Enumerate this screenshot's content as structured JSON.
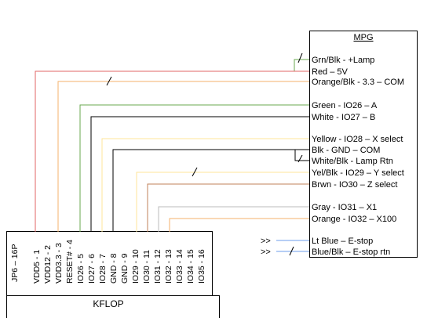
{
  "mpg": {
    "title": "MPG",
    "labels": [
      {
        "id": "grn-blk",
        "text": "Grn/Blk - +Lamp"
      },
      {
        "id": "red",
        "text": "Red – 5V"
      },
      {
        "id": "orange-blk",
        "text": "Orange/Blk - 3.3 – COM"
      },
      {
        "id": "green",
        "text": "Green - IO26 – A"
      },
      {
        "id": "white",
        "text": "White - IO27 – B"
      },
      {
        "id": "yellow",
        "text": "Yellow - IO28 – X select"
      },
      {
        "id": "blk",
        "text": "Blk - GND – COM"
      },
      {
        "id": "white-blk",
        "text": "White/Blk - Lamp Rtn"
      },
      {
        "id": "yel-blk",
        "text": "Yel/Blk - IO29 – Y select"
      },
      {
        "id": "brwn",
        "text": "Brwn - IO30 – Z select"
      },
      {
        "id": "gray",
        "text": "Gray - IO31 – X1"
      },
      {
        "id": "orange",
        "text": "Orange - IO32 – X100"
      },
      {
        "id": "lt-blue",
        "text": "Lt Blue – E-stop"
      },
      {
        "id": "blue-blk",
        "text": "Blue/Blk – E-stop rtn"
      }
    ]
  },
  "kflop": {
    "title": "KFLOP",
    "connector": "JP6 – 16P",
    "pins": [
      "VDD5 - 1",
      "VDD12 - 2",
      "VDD3.3 - 3",
      "RESET# - 4",
      "IO26 - 5",
      "IO27 - 6",
      "IO28 - 7",
      "GND - 8",
      "GND - 9",
      "IO29 - 10",
      "IO30 - 11",
      "IO31 - 12",
      "IO32 - 13",
      "IO33 - 14",
      "IO34 - 15",
      "IO35 - 16"
    ]
  },
  "offboard_markers": [
    ">>",
    ">>"
  ],
  "colors": {
    "red": "#e06666",
    "orange": "#f6b26b",
    "green": "#6aa84f",
    "white_wire": "#000000",
    "yellow": "#ffe599",
    "brown": "#c0825a",
    "gray": "#bbbbbb",
    "blue": "#6d9eeb",
    "black": "#000000"
  }
}
